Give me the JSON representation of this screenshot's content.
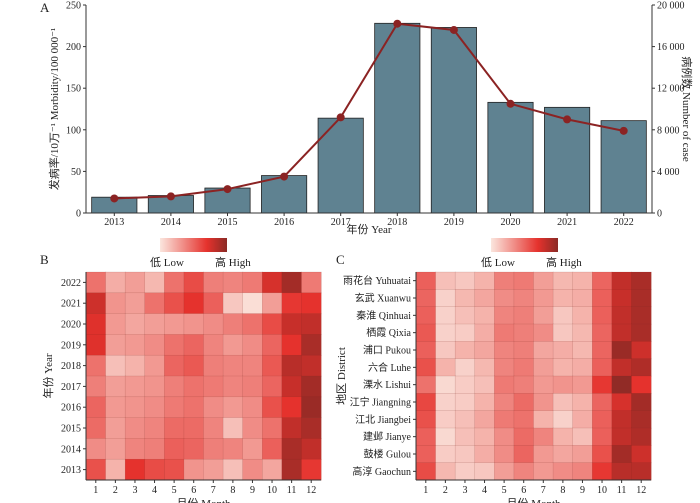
{
  "chart_data": [
    {
      "panel": "A",
      "type": "bar",
      "title": "",
      "categories": [
        "2013",
        "2014",
        "2015",
        "2016",
        "2017",
        "2018",
        "2019",
        "2020",
        "2021",
        "2022"
      ],
      "xlabel": "年份 Year",
      "ylabel": "发病率/10万⁻¹ Morbidity/100 000⁻¹",
      "ylim": [
        0,
        250
      ],
      "yticks": [
        0,
        50,
        100,
        150,
        200,
        250
      ],
      "ytick_labels": [
        "0",
        "50",
        "100",
        "150",
        "200",
        "250"
      ],
      "y2label": "病例数 Number of case",
      "y2lim": [
        0,
        20000
      ],
      "y2ticks": [
        0,
        4000,
        8000,
        12000,
        16000,
        20000
      ],
      "y2tick_labels": [
        "0",
        "4 000",
        "8 000",
        "12 000",
        "16 000",
        "20 000"
      ],
      "series": [
        {
          "name": "Morbidity",
          "type": "bar",
          "axis": "left",
          "color": "#5f8291",
          "values": [
            19,
            21,
            30,
            45,
            114,
            228,
            223,
            133,
            127,
            111
          ]
        },
        {
          "name": "Number of case",
          "type": "line",
          "axis": "right",
          "color": "#8b2323",
          "values": [
            1400,
            1600,
            2300,
            3500,
            9200,
            18200,
            17600,
            10500,
            9000,
            7900
          ]
        }
      ],
      "grid": false
    },
    {
      "panel": "B",
      "type": "heatmap",
      "title": "",
      "xlabel": "月份 Month",
      "ylabel": "年份 Year",
      "x": [
        "1",
        "2",
        "3",
        "4",
        "5",
        "6",
        "7",
        "8",
        "9",
        "10",
        "11",
        "12"
      ],
      "y": [
        "2022",
        "2021",
        "2020",
        "2019",
        "2018",
        "2017",
        "2016",
        "2015",
        "2014",
        "2013"
      ],
      "legend": {
        "low": "低 Low",
        "high": "高 High",
        "placement": "top"
      },
      "values": [
        [
          0.45,
          0.22,
          0.28,
          0.18,
          0.45,
          0.6,
          0.4,
          0.38,
          0.42,
          0.75,
          0.92,
          0.42
        ],
        [
          0.78,
          0.32,
          0.28,
          0.45,
          0.58,
          0.7,
          0.52,
          0.12,
          0.03,
          0.28,
          0.68,
          0.7
        ],
        [
          0.72,
          0.3,
          0.25,
          0.28,
          0.3,
          0.32,
          0.35,
          0.4,
          0.45,
          0.6,
          0.8,
          0.82
        ],
        [
          0.72,
          0.28,
          0.3,
          0.35,
          0.45,
          0.5,
          0.38,
          0.3,
          0.35,
          0.5,
          0.7,
          0.9
        ],
        [
          0.45,
          0.15,
          0.2,
          0.3,
          0.5,
          0.55,
          0.4,
          0.38,
          0.38,
          0.55,
          0.85,
          0.82
        ],
        [
          0.4,
          0.28,
          0.3,
          0.32,
          0.4,
          0.45,
          0.42,
          0.38,
          0.4,
          0.5,
          0.8,
          0.92
        ],
        [
          0.5,
          0.3,
          0.32,
          0.35,
          0.42,
          0.45,
          0.35,
          0.3,
          0.35,
          0.58,
          0.7,
          0.95
        ],
        [
          0.48,
          0.28,
          0.35,
          0.38,
          0.48,
          0.48,
          0.38,
          0.15,
          0.35,
          0.45,
          0.82,
          0.9
        ],
        [
          0.35,
          0.28,
          0.38,
          0.4,
          0.52,
          0.5,
          0.4,
          0.38,
          0.3,
          0.52,
          0.9,
          0.82
        ],
        [
          0.58,
          0.2,
          0.7,
          0.6,
          0.58,
          0.32,
          0.28,
          0.15,
          0.35,
          0.25,
          0.9,
          0.68
        ]
      ]
    },
    {
      "panel": "C",
      "type": "heatmap",
      "title": "",
      "xlabel": "月份 Month",
      "ylabel": "地区 District",
      "x": [
        "1",
        "2",
        "3",
        "4",
        "5",
        "6",
        "7",
        "8",
        "9",
        "10",
        "11",
        "12"
      ],
      "y": [
        "雨花台 Yuhuatai",
        "玄武 Xuanwu",
        "秦淮 Qinhuai",
        "栖霞 Qixia",
        "浦口 Pukou",
        "六合 Luhe",
        "溧水 Lishui",
        "江宁 Jiangning",
        "江北 Jiangbei",
        "建邺 Jianye",
        "鼓楼 Gulou",
        "高淳 Gaochun"
      ],
      "legend": {
        "low": "低 Low",
        "high": "高 High",
        "placement": "top"
      },
      "values": [
        [
          0.52,
          0.15,
          0.12,
          0.2,
          0.4,
          0.42,
          0.28,
          0.18,
          0.2,
          0.5,
          0.82,
          0.9
        ],
        [
          0.5,
          0.08,
          0.18,
          0.25,
          0.35,
          0.38,
          0.3,
          0.2,
          0.22,
          0.52,
          0.8,
          0.9
        ],
        [
          0.52,
          0.08,
          0.15,
          0.2,
          0.38,
          0.4,
          0.28,
          0.12,
          0.2,
          0.52,
          0.82,
          0.9
        ],
        [
          0.55,
          0.08,
          0.1,
          0.22,
          0.42,
          0.4,
          0.35,
          0.12,
          0.18,
          0.5,
          0.82,
          0.9
        ],
        [
          0.52,
          0.12,
          0.2,
          0.25,
          0.38,
          0.4,
          0.25,
          0.22,
          0.18,
          0.5,
          0.95,
          0.78
        ],
        [
          0.58,
          0.2,
          0.08,
          0.18,
          0.38,
          0.42,
          0.28,
          0.2,
          0.22,
          0.52,
          0.82,
          0.88
        ],
        [
          0.45,
          0.05,
          0.1,
          0.15,
          0.42,
          0.4,
          0.3,
          0.32,
          0.3,
          0.68,
          0.98,
          0.7
        ],
        [
          0.62,
          0.08,
          0.1,
          0.2,
          0.38,
          0.48,
          0.32,
          0.15,
          0.2,
          0.5,
          0.75,
          0.92
        ],
        [
          0.58,
          0.1,
          0.15,
          0.25,
          0.42,
          0.45,
          0.2,
          0.08,
          0.22,
          0.52,
          0.82,
          0.9
        ],
        [
          0.52,
          0.05,
          0.15,
          0.2,
          0.35,
          0.48,
          0.38,
          0.2,
          0.15,
          0.52,
          0.82,
          0.88
        ],
        [
          0.52,
          0.1,
          0.12,
          0.22,
          0.35,
          0.5,
          0.3,
          0.25,
          0.28,
          0.58,
          0.92,
          0.78
        ],
        [
          0.6,
          0.18,
          0.1,
          0.12,
          0.28,
          0.38,
          0.3,
          0.35,
          0.38,
          0.68,
          0.85,
          0.85
        ]
      ]
    }
  ],
  "panels": {
    "a_label": "A",
    "b_label": "B",
    "c_label": "C"
  },
  "colors": {
    "bar": "#5f8291",
    "line": "#8b2323",
    "heat_low": "#fbe6de",
    "heat_mid": "#e5322d",
    "heat_high": "#8b2a25"
  }
}
